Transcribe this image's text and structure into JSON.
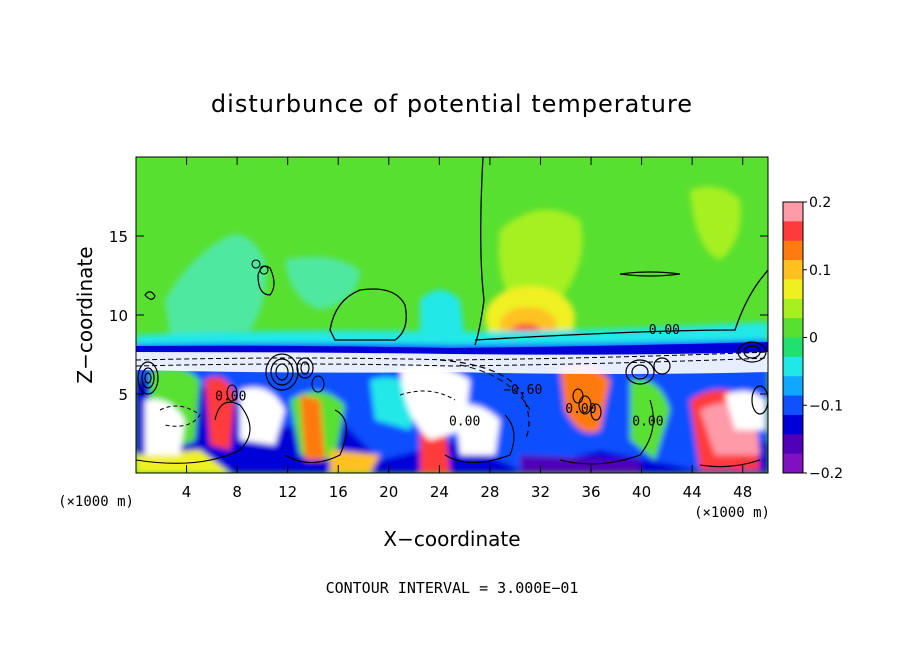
{
  "chart_data": {
    "type": "heatmap",
    "title": "disturbunce of potential temperature",
    "xlabel": "X−coordinate",
    "ylabel": "Z−coordinate",
    "x_unit_left": "(×1000 m)",
    "x_unit_right": "(×1000 m)",
    "footer": "CONTOUR INTERVAL = 3.000E−01",
    "xlim": [
      0,
      50
    ],
    "ylim": [
      0,
      20
    ],
    "x_ticks": [
      4,
      8,
      12,
      16,
      20,
      24,
      28,
      32,
      36,
      40,
      44,
      48
    ],
    "y_ticks": [
      5,
      10,
      15
    ],
    "colorbar": {
      "range": [
        -0.2,
        0.2
      ],
      "labels": [
        "0.2",
        "0.1",
        "0",
        "−0.1",
        "−0.2"
      ],
      "label_values": [
        0.2,
        0.1,
        0,
        -0.1,
        -0.2
      ],
      "colors": [
        "#ff9aa8",
        "#ff3a3a",
        "#ff7a10",
        "#ffc020",
        "#f0f020",
        "#a6f020",
        "#58e030",
        "#20e070",
        "#20e8e8",
        "#10a8ff",
        "#1050ff",
        "#0000d8",
        "#5000b8",
        "#8010c0"
      ]
    },
    "contour_labels": [
      {
        "text": "0.00",
        "x": 41.8,
        "z": 8.8
      },
      {
        "text": "0.00",
        "x": 7.5,
        "z": 4.6
      },
      {
        "text": "0.00",
        "x": 26.0,
        "z": 3.0
      },
      {
        "text": "−0.60",
        "x": 30.6,
        "z": 5.0
      },
      {
        "text": "0.00",
        "x": 35.2,
        "z": 3.8
      },
      {
        "text": "0.00",
        "x": 40.5,
        "z": 3.0
      }
    ]
  }
}
